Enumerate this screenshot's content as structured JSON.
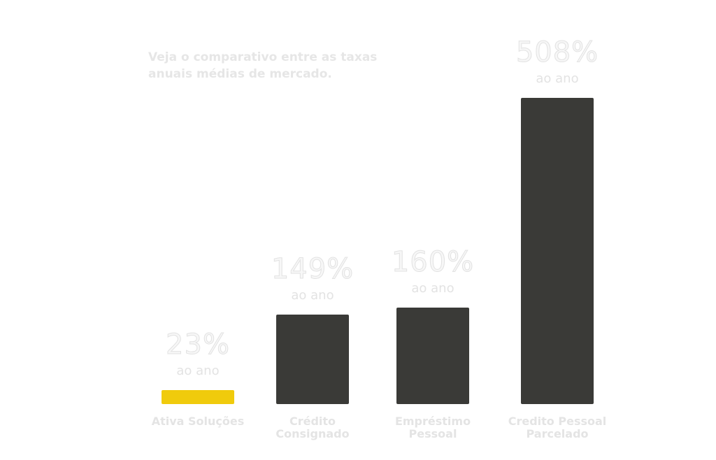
{
  "chart_data": {
    "type": "bar",
    "title": "Veja o comparativo entre as taxas anuais médias de mercado.",
    "categories": [
      "Ativa Soluções",
      "Crédito Consignado",
      "Empréstimo Pessoal",
      "Credito Pessoal Parcelado"
    ],
    "values": [
      23,
      149,
      160,
      508
    ],
    "value_labels": [
      "23%",
      "149%",
      "160%",
      "508%"
    ],
    "value_sublabel": "ao ano",
    "colors": [
      "#f0cb0c",
      "#3a3a37",
      "#3a3a37",
      "#3a3a37"
    ]
  }
}
